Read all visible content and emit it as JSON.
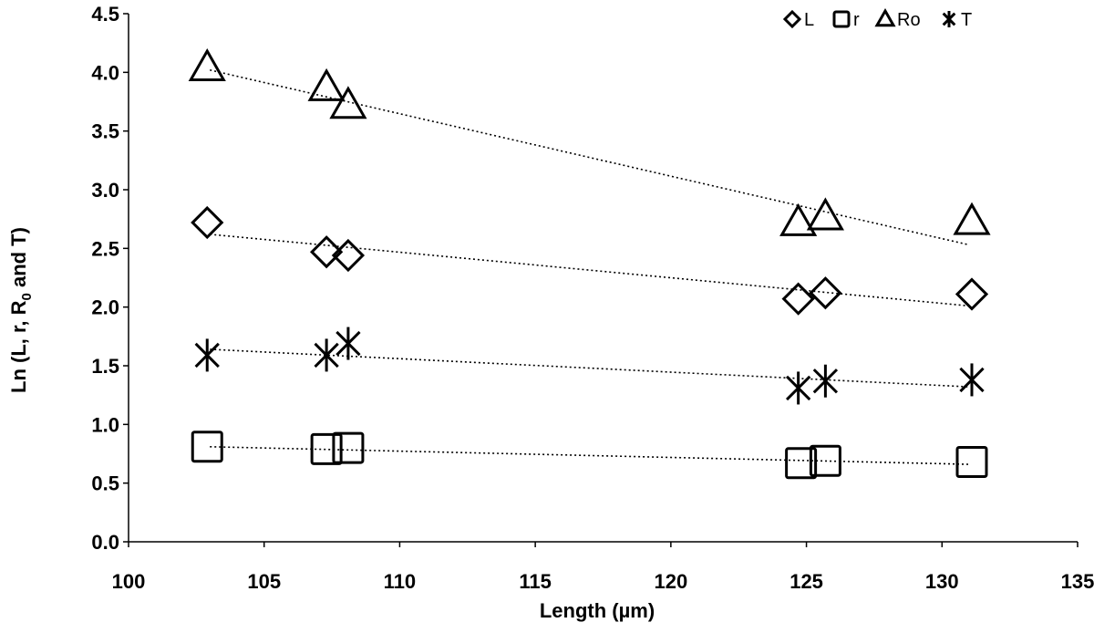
{
  "chart_data": {
    "type": "scatter",
    "xlabel": "Length (µm)",
    "ylabel": "Ln (L, r, R₀ and T)",
    "ylabel_parts": {
      "main": "Ln (L, r, R",
      "sub": "0",
      "tail": " and T)"
    },
    "xlim": [
      100,
      135
    ],
    "ylim": [
      0,
      4.5
    ],
    "x_ticks": [
      100,
      105,
      110,
      115,
      120,
      125,
      130,
      135
    ],
    "y_ticks": [
      "0.0",
      "0.5",
      "1.0",
      "1.5",
      "2.0",
      "2.5",
      "3.0",
      "3.5",
      "4.0",
      "4.5"
    ],
    "grid": false,
    "legend_position": "top-right",
    "series": [
      {
        "name": "L",
        "marker": "diamond",
        "x": [
          102.9,
          107.3,
          108.1,
          124.7,
          125.7,
          131.1
        ],
        "y": [
          2.72,
          2.47,
          2.44,
          2.07,
          2.12,
          2.11
        ],
        "trendline": [
          [
            103,
            2.62
          ],
          [
            131,
            2.01
          ]
        ]
      },
      {
        "name": "r",
        "marker": "square",
        "x": [
          102.9,
          107.3,
          108.1,
          124.8,
          125.7,
          131.1
        ],
        "y": [
          0.81,
          0.79,
          0.8,
          0.67,
          0.69,
          0.68
        ],
        "trendline": [
          [
            103,
            0.81
          ],
          [
            131,
            0.66
          ]
        ]
      },
      {
        "name": "Ro",
        "marker": "triangle",
        "x": [
          102.9,
          107.3,
          108.1,
          124.7,
          125.7,
          131.1
        ],
        "y": [
          4.01,
          3.84,
          3.69,
          2.69,
          2.74,
          2.7
        ],
        "trendline": [
          [
            103,
            4.02
          ],
          [
            131,
            2.53
          ]
        ]
      },
      {
        "name": "T",
        "marker": "star",
        "x": [
          102.9,
          107.3,
          108.1,
          124.7,
          125.7,
          131.1
        ],
        "y": [
          1.59,
          1.59,
          1.69,
          1.31,
          1.37,
          1.38
        ],
        "trendline": [
          [
            103,
            1.64
          ],
          [
            131,
            1.32
          ]
        ]
      }
    ]
  }
}
